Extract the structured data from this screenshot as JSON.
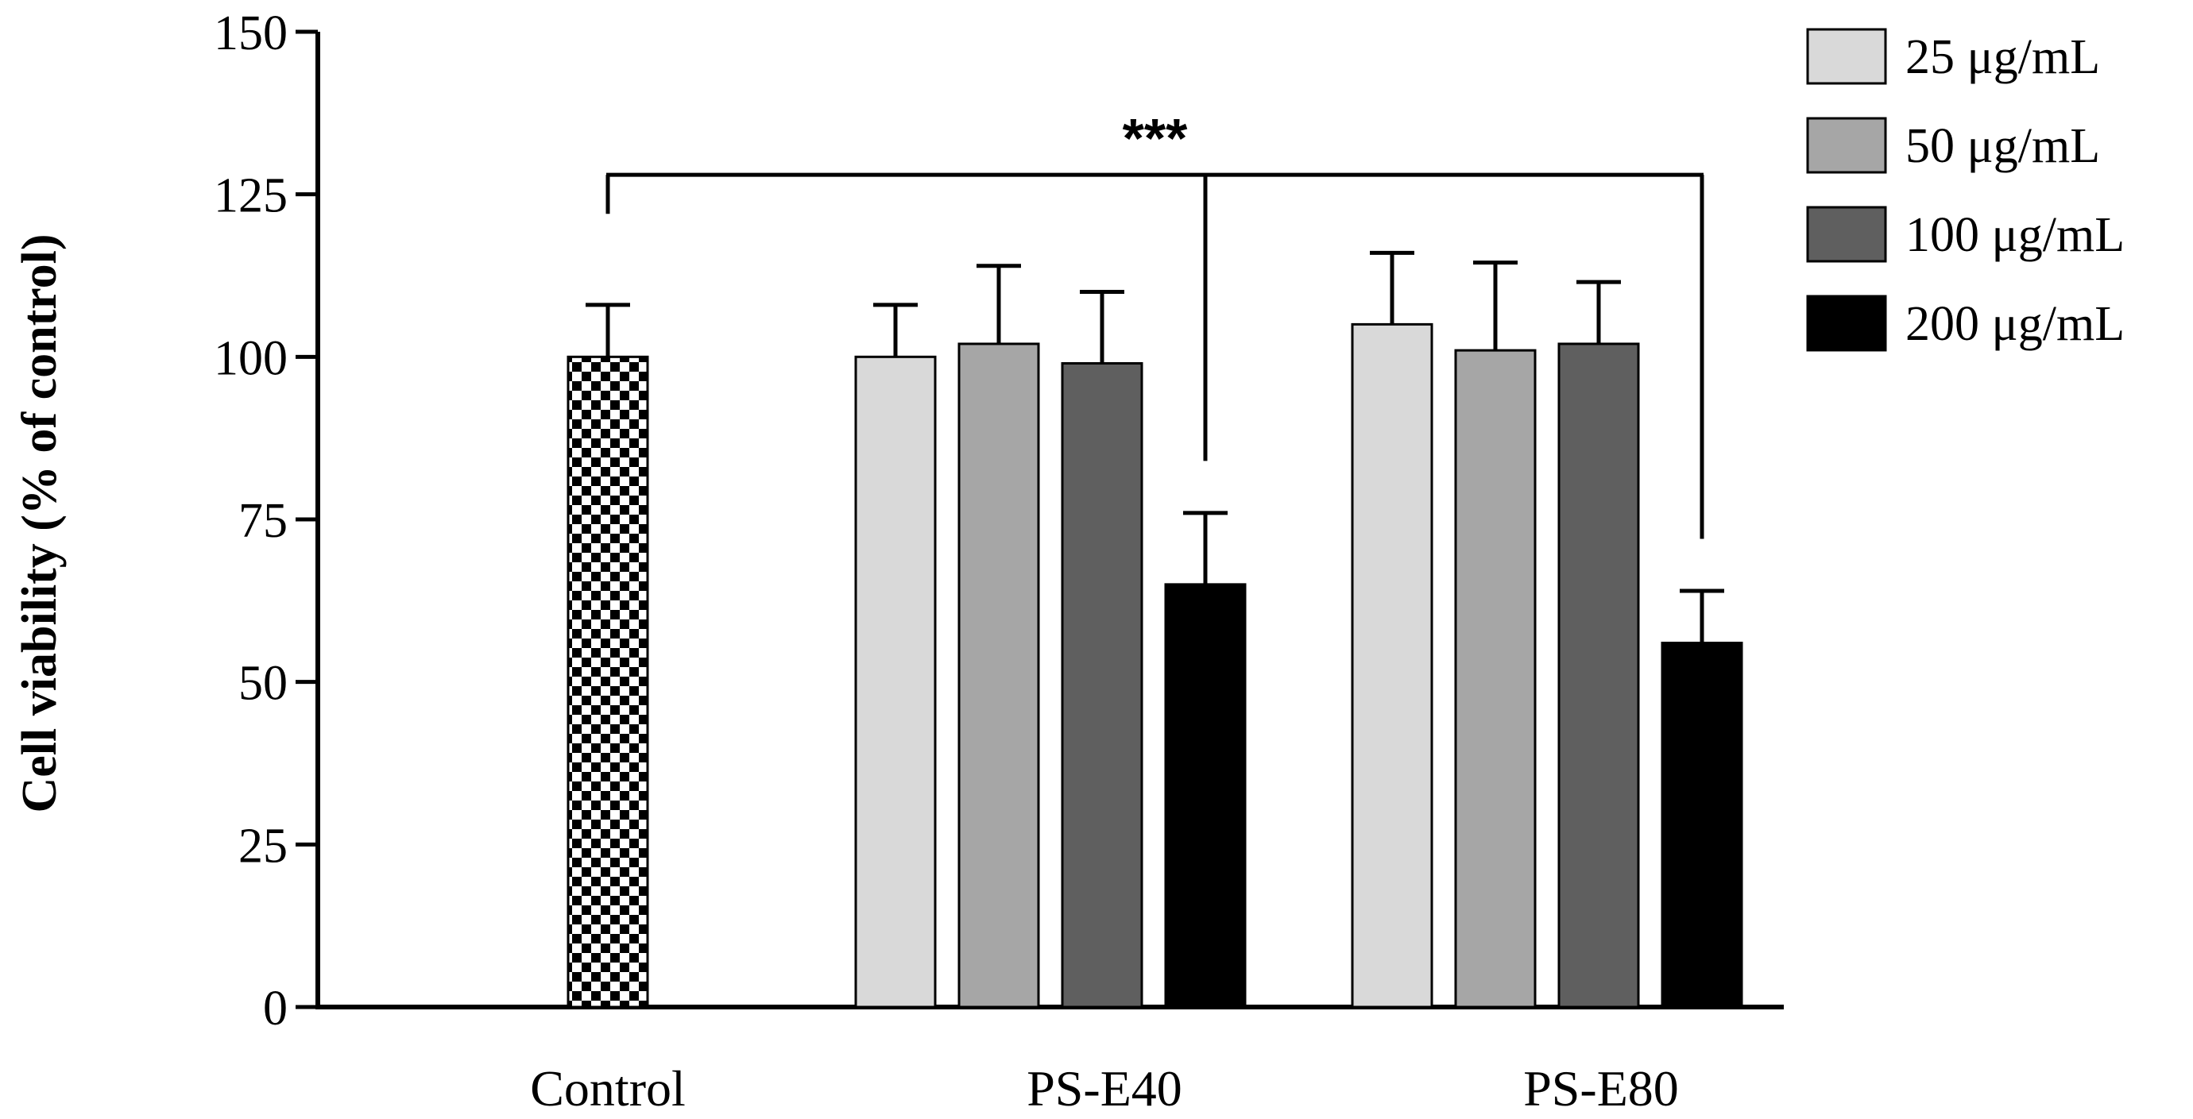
{
  "chart_data": {
    "type": "bar",
    "title": "",
    "xlabel": "",
    "ylabel": "Cell viability (% of control)",
    "ylim": [
      0,
      150
    ],
    "yticks": [
      0,
      25,
      50,
      75,
      100,
      125,
      150
    ],
    "colors": {
      "axis": "#000000",
      "control_pattern_dark": "#000000",
      "control_pattern_light": "#ffffff",
      "25": "#d9d9d9",
      "50": "#a6a6a6",
      "100": "#5f5f5f",
      "200": "#000000"
    },
    "groups": [
      {
        "name": "Control",
        "bars": [
          {
            "series": "Control",
            "value": 100,
            "error": 8,
            "color": "pattern"
          }
        ]
      },
      {
        "name": "PS-E40",
        "bars": [
          {
            "series": "25 μg/mL",
            "value": 100,
            "error": 8,
            "color": "#d9d9d9"
          },
          {
            "series": "50 μg/mL",
            "value": 102,
            "error": 12,
            "color": "#a6a6a6"
          },
          {
            "series": "100 μg/mL",
            "value": 99,
            "error": 11,
            "color": "#5f5f5f"
          },
          {
            "series": "200 μg/mL",
            "value": 65,
            "error": 11,
            "color": "#000000"
          }
        ]
      },
      {
        "name": "PS-E80",
        "bars": [
          {
            "series": "25 μg/mL",
            "value": 105,
            "error": 11,
            "color": "#d9d9d9"
          },
          {
            "series": "50 μg/mL",
            "value": 101,
            "error": 13.5,
            "color": "#a6a6a6"
          },
          {
            "series": "100 μg/mL",
            "value": 102,
            "error": 9.5,
            "color": "#5f5f5f"
          },
          {
            "series": "200 μg/mL",
            "value": 56,
            "error": 8,
            "color": "#000000"
          }
        ]
      }
    ],
    "legend": [
      {
        "label": "25 μg/mL",
        "color": "#d9d9d9"
      },
      {
        "label": "50 μg/mL",
        "color": "#a6a6a6"
      },
      {
        "label": "100 μg/mL",
        "color": "#5f5f5f"
      },
      {
        "label": "200 μg/mL",
        "color": "#000000"
      }
    ],
    "legend_position": "top-right",
    "significance": {
      "label": "***",
      "bracket_level": 128,
      "from_group": "Control",
      "to": [
        {
          "group": "PS-E40",
          "series": "200 μg/mL",
          "drop_to": 84
        },
        {
          "group": "PS-E80",
          "series": "200 μg/mL",
          "drop_to": 72
        }
      ]
    }
  }
}
